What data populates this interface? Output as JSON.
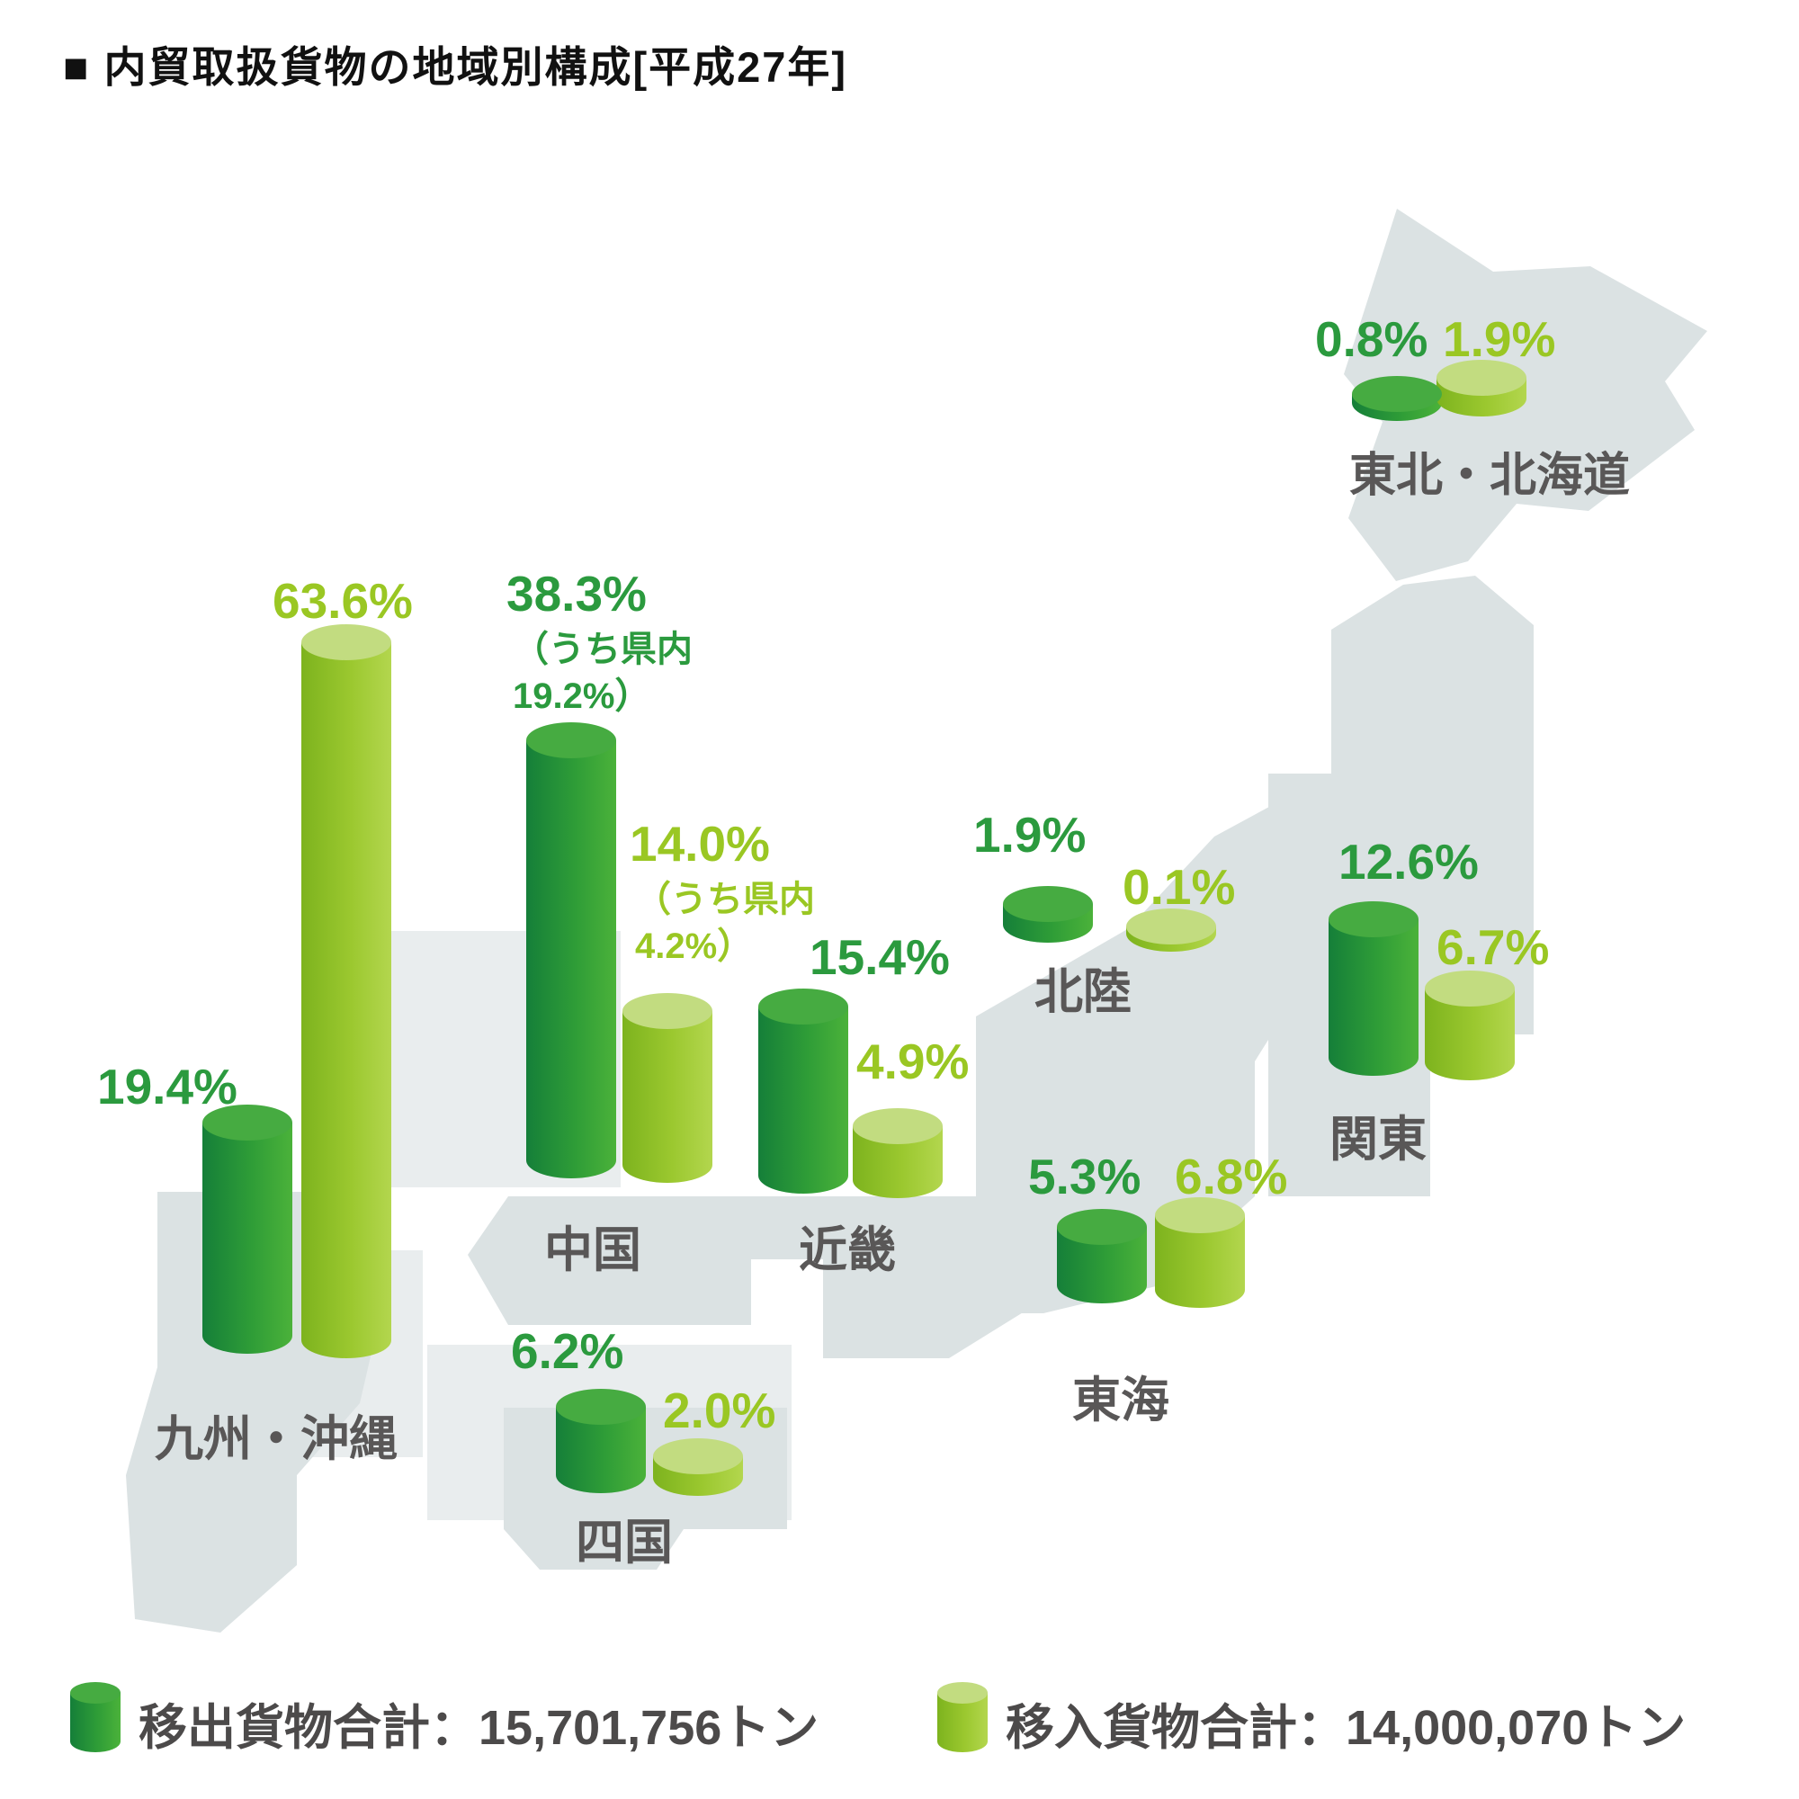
{
  "title": "■ 内貿取扱貨物の地域別構成[平成27年]",
  "chart_data": {
    "type": "bar",
    "subtype": "3d-cylinder-bars-over-japan-map",
    "title": "内貿取扱貨物の地域別構成[平成27年]",
    "unit": "%",
    "series": [
      {
        "key": "out",
        "name": "移出",
        "color": "#2f9d37"
      },
      {
        "key": "in",
        "name": "移入",
        "color": "#9bc82f"
      }
    ],
    "regions": [
      {
        "name": "東北・北海道",
        "out_pct": 0.8,
        "out_label": "0.8%",
        "in_pct": 1.9,
        "in_label": "1.9%"
      },
      {
        "name": "北陸",
        "out_pct": 1.9,
        "out_label": "1.9%",
        "in_pct": 0.1,
        "in_label": "0.1%"
      },
      {
        "name": "関東",
        "out_pct": 12.6,
        "out_label": "12.6%",
        "in_pct": 6.7,
        "in_label": "6.7%"
      },
      {
        "name": "東海",
        "out_pct": 5.3,
        "out_label": "5.3%",
        "in_pct": 6.8,
        "in_label": "6.8%"
      },
      {
        "name": "近畿",
        "out_pct": 15.4,
        "out_label": "15.4%",
        "in_pct": 4.9,
        "in_label": "4.9%"
      },
      {
        "name": "中国",
        "out_pct": 38.3,
        "out_label": "38.3%",
        "out_note": "（うち県内\n19.2%）",
        "in_pct": 14.0,
        "in_label": "14.0%",
        "in_note": "（うち県内\n4.2%）"
      },
      {
        "name": "四国",
        "out_pct": 6.2,
        "out_label": "6.2%",
        "in_pct": 2.0,
        "in_label": "2.0%"
      },
      {
        "name": "九州・沖縄",
        "out_pct": 19.4,
        "out_label": "19.4%",
        "in_pct": 63.6,
        "in_label": "63.6%"
      }
    ],
    "legend": [
      {
        "series": "out",
        "label": "移出貨物合計：15,701,756トン"
      },
      {
        "series": "in",
        "label": "移入貨物合計：14,000,070トン"
      }
    ]
  },
  "colors": {
    "outbound_text": "#2b9a3e",
    "inbound_text": "#9ac723",
    "outbound_cap": "#46ab41",
    "inbound_cap": "#c2dc80",
    "region_label": "#595757",
    "legend_text": "#4c4a4a",
    "map": "#dbe2e3",
    "map_shadow": "#e9edee",
    "title_text": "#111111"
  }
}
